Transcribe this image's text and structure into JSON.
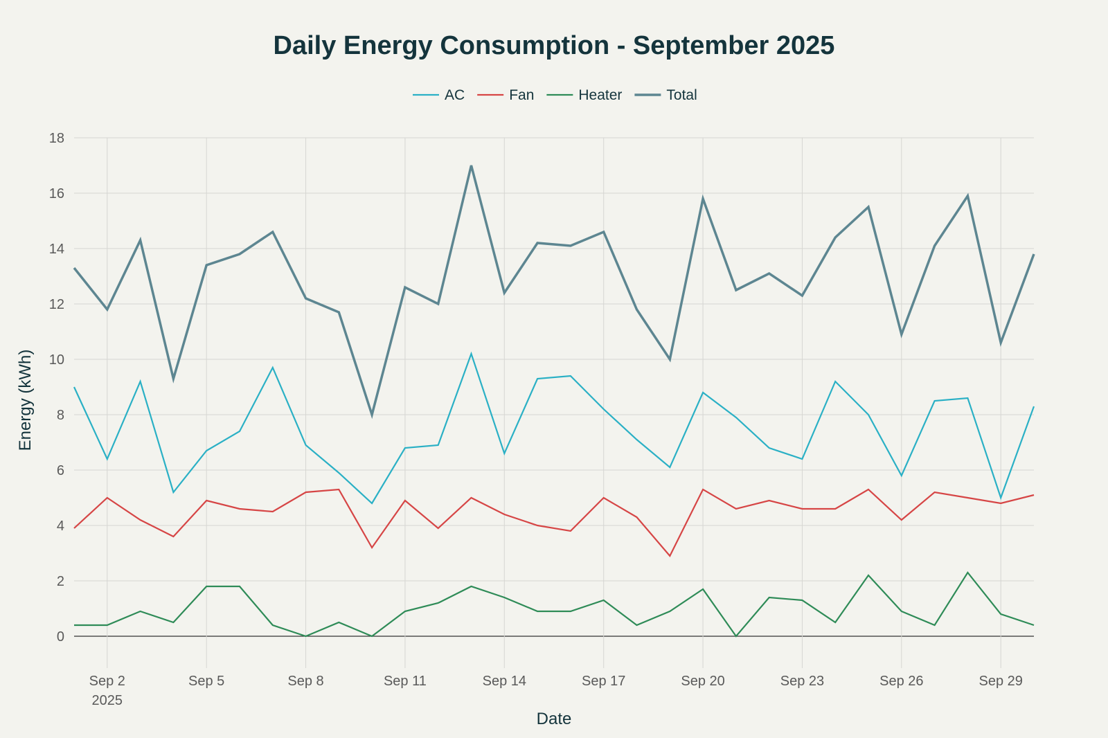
{
  "chart_data": {
    "type": "line",
    "title": "Daily Energy Consumption - September 2025",
    "xlabel": "Date",
    "ylabel": "Energy (kWh)",
    "x_type": "date",
    "x": [
      "2025-09-01",
      "2025-09-02",
      "2025-09-03",
      "2025-09-04",
      "2025-09-05",
      "2025-09-06",
      "2025-09-07",
      "2025-09-08",
      "2025-09-09",
      "2025-09-10",
      "2025-09-11",
      "2025-09-12",
      "2025-09-13",
      "2025-09-14",
      "2025-09-15",
      "2025-09-16",
      "2025-09-17",
      "2025-09-18",
      "2025-09-19",
      "2025-09-20",
      "2025-09-21",
      "2025-09-22",
      "2025-09-23",
      "2025-09-24",
      "2025-09-25",
      "2025-09-26",
      "2025-09-27",
      "2025-09-28",
      "2025-09-29",
      "2025-09-30"
    ],
    "xlim": [
      "2025-09-01",
      "2025-09-30"
    ],
    "x_ticks": [
      {
        "date": "2025-09-02",
        "label": "Sep 2",
        "sublabel": "2025"
      },
      {
        "date": "2025-09-05",
        "label": "Sep 5",
        "sublabel": ""
      },
      {
        "date": "2025-09-08",
        "label": "Sep 8",
        "sublabel": ""
      },
      {
        "date": "2025-09-11",
        "label": "Sep 11",
        "sublabel": ""
      },
      {
        "date": "2025-09-14",
        "label": "Sep 14",
        "sublabel": ""
      },
      {
        "date": "2025-09-17",
        "label": "Sep 17",
        "sublabel": ""
      },
      {
        "date": "2025-09-20",
        "label": "Sep 20",
        "sublabel": ""
      },
      {
        "date": "2025-09-23",
        "label": "Sep 23",
        "sublabel": ""
      },
      {
        "date": "2025-09-26",
        "label": "Sep 26",
        "sublabel": ""
      },
      {
        "date": "2025-09-29",
        "label": "Sep 29",
        "sublabel": ""
      }
    ],
    "ylim": [
      -1.2,
      18
    ],
    "y_ticks": [
      0,
      2,
      4,
      6,
      8,
      10,
      12,
      14,
      16,
      18
    ],
    "grid": true,
    "legend_position": "top-center",
    "series": [
      {
        "name": "AC",
        "color": "#2ab0c5",
        "values": [
          9.0,
          6.4,
          9.2,
          5.2,
          6.7,
          7.4,
          9.7,
          6.9,
          5.9,
          4.8,
          6.8,
          6.9,
          10.2,
          6.6,
          9.3,
          9.4,
          8.2,
          7.1,
          6.1,
          8.8,
          7.9,
          6.8,
          6.4,
          9.2,
          8.0,
          5.8,
          8.5,
          8.6,
          5.0,
          8.3
        ]
      },
      {
        "name": "Fan",
        "color": "#d64545",
        "values": [
          3.9,
          5.0,
          4.2,
          3.6,
          4.9,
          4.6,
          4.5,
          5.2,
          5.3,
          3.2,
          4.9,
          3.9,
          5.0,
          4.4,
          4.0,
          3.8,
          5.0,
          4.3,
          2.9,
          5.3,
          4.6,
          4.9,
          4.6,
          4.6,
          5.3,
          4.2,
          5.2,
          5.0,
          4.8,
          5.1
        ]
      },
      {
        "name": "Heater",
        "color": "#2e8b57",
        "values": [
          0.4,
          0.4,
          0.9,
          0.5,
          1.8,
          1.8,
          0.4,
          0.0,
          0.5,
          0.0,
          0.9,
          1.2,
          1.8,
          1.4,
          0.9,
          0.9,
          1.3,
          0.4,
          0.9,
          1.7,
          0.0,
          1.4,
          1.3,
          0.5,
          2.2,
          0.9,
          0.4,
          2.3,
          0.8,
          0.4
        ]
      },
      {
        "name": "Total",
        "color": "#5d8691",
        "values": [
          13.3,
          11.8,
          14.3,
          9.3,
          13.4,
          13.8,
          14.6,
          12.2,
          11.7,
          8.0,
          12.6,
          12.0,
          17.0,
          12.4,
          14.2,
          14.1,
          14.6,
          11.8,
          10.0,
          15.8,
          12.5,
          13.1,
          12.3,
          14.4,
          15.5,
          10.9,
          14.1,
          15.9,
          10.6,
          13.8
        ]
      }
    ]
  }
}
